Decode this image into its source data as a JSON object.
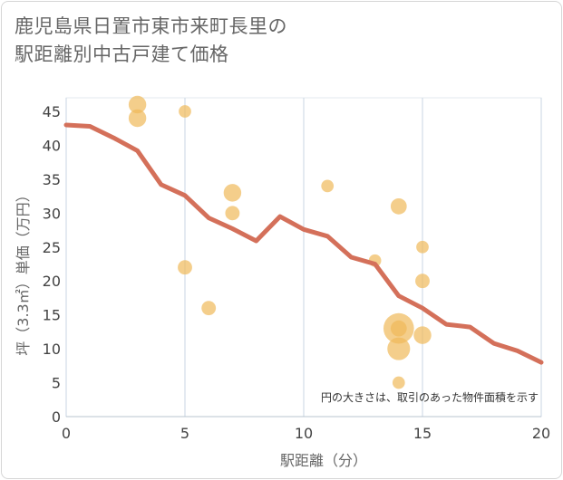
{
  "chart_data": {
    "type": "scatter",
    "title_lines": [
      "鹿児島県日置市東市来町長里の",
      "駅距離別中古戸建て価格"
    ],
    "xlabel": "駅距離（分）",
    "ylabel": "坪（3.3㎡）単価（万円）",
    "xlim": [
      0,
      20
    ],
    "ylim": [
      0,
      47
    ],
    "xticks": [
      0,
      5,
      10,
      15,
      20
    ],
    "yticks": [
      0,
      5,
      10,
      15,
      20,
      25,
      30,
      35,
      40,
      45
    ],
    "grid": true,
    "note": "円の大きさは、取引のあった物件面積を示す",
    "colors": {
      "bubble": "#f0b95a",
      "line": "#d4705a",
      "grid": "#c9d6e3"
    },
    "scatter": [
      {
        "x": 3,
        "y": 46,
        "size": 3
      },
      {
        "x": 3,
        "y": 44,
        "size": 3
      },
      {
        "x": 5,
        "y": 45,
        "size": 1.5
      },
      {
        "x": 5,
        "y": 22,
        "size": 2
      },
      {
        "x": 6,
        "y": 16,
        "size": 2
      },
      {
        "x": 7,
        "y": 33,
        "size": 3
      },
      {
        "x": 7,
        "y": 30,
        "size": 2
      },
      {
        "x": 11,
        "y": 34,
        "size": 1.5
      },
      {
        "x": 13,
        "y": 23,
        "size": 1.5
      },
      {
        "x": 14,
        "y": 31,
        "size": 2.5
      },
      {
        "x": 14,
        "y": 13,
        "size": 9
      },
      {
        "x": 14,
        "y": 13,
        "size": 2.5
      },
      {
        "x": 14,
        "y": 10,
        "size": 5
      },
      {
        "x": 14,
        "y": 5,
        "size": 1.5
      },
      {
        "x": 15,
        "y": 25,
        "size": 1.5
      },
      {
        "x": 15,
        "y": 20,
        "size": 2
      },
      {
        "x": 15,
        "y": 12,
        "size": 3
      }
    ],
    "trend": {
      "x": [
        0,
        1,
        2,
        3,
        4,
        5,
        6,
        7,
        8,
        9,
        10,
        11,
        12,
        13,
        14,
        15,
        16,
        17,
        18,
        19,
        20
      ],
      "y": [
        43,
        42.8,
        41.1,
        39.2,
        34.2,
        32.6,
        29.3,
        27.7,
        25.9,
        29.5,
        27.6,
        26.6,
        23.5,
        22.5,
        17.8,
        16.0,
        13.6,
        13.2,
        10.8,
        9.7,
        8.0
      ]
    }
  }
}
